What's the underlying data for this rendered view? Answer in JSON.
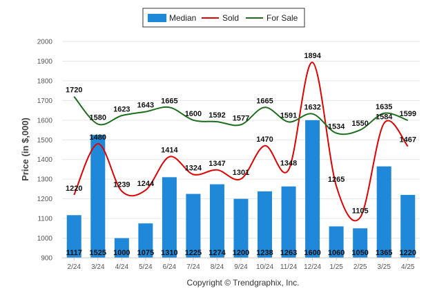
{
  "chart_data": {
    "type": "bar",
    "categories": [
      "2/24",
      "3/24",
      "4/24",
      "5/24",
      "6/24",
      "7/24",
      "8/24",
      "9/24",
      "10/24",
      "11/24",
      "12/24",
      "1/25",
      "2/25",
      "3/25",
      "4/25"
    ],
    "ylabel": "Price (in $,000)",
    "ylim": [
      900,
      2000
    ],
    "yticks": [
      900,
      1000,
      1100,
      1200,
      1300,
      1400,
      1500,
      1600,
      1700,
      1800,
      1900,
      2000
    ],
    "grid": true,
    "legend_position": "top-center",
    "series": [
      {
        "name": "Median",
        "type": "bar",
        "color": "#1f88d8",
        "values": [
          1117,
          1525,
          1000,
          1075,
          1310,
          1225,
          1274,
          1200,
          1238,
          1263,
          1600,
          1060,
          1050,
          1365,
          1220
        ]
      },
      {
        "name": "Sold",
        "type": "line",
        "color": "#e00000",
        "values": [
          1220,
          1480,
          1239,
          1244,
          1414,
          1324,
          1347,
          1301,
          1470,
          1348,
          1894,
          1265,
          1105,
          1584,
          1467
        ]
      },
      {
        "name": "For Sale",
        "type": "line",
        "color": "#1b6e1b",
        "values": [
          1720,
          1580,
          1623,
          1643,
          1665,
          1600,
          1592,
          1577,
          1665,
          1591,
          1632,
          1534,
          1550,
          1635,
          1599
        ]
      }
    ]
  },
  "footer": "Copyright © Trendgraphix, Inc."
}
